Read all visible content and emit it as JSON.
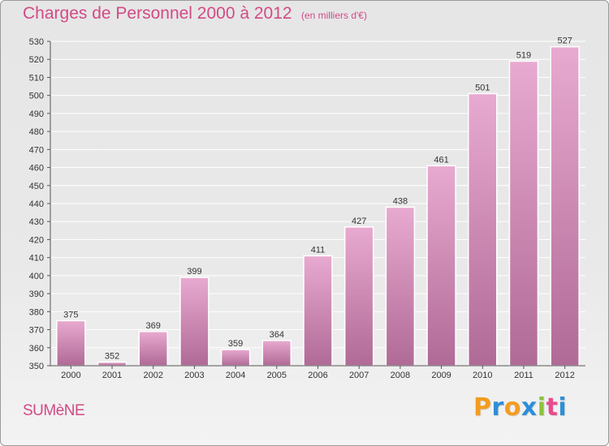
{
  "chart_data": {
    "type": "bar",
    "title": "Charges de Personnel 2000 à 2012",
    "subtitle": "(en milliers d'€)",
    "categories": [
      "2000",
      "2001",
      "2002",
      "2003",
      "2004",
      "2005",
      "2006",
      "2007",
      "2008",
      "2009",
      "2010",
      "2011",
      "2012"
    ],
    "values": [
      375,
      352,
      369,
      399,
      359,
      364,
      411,
      427,
      438,
      461,
      501,
      519,
      527
    ],
    "xlabel": "",
    "ylabel": "",
    "ylim": [
      350,
      530
    ],
    "y_ticks": [
      350,
      360,
      370,
      380,
      390,
      400,
      410,
      420,
      430,
      440,
      450,
      460,
      470,
      480,
      490,
      500,
      510,
      520,
      530
    ],
    "grid": true,
    "data_labels": true,
    "bar_color_top": "#e8aad0",
    "bar_color_bottom": "#b06a96"
  },
  "footer": {
    "commune": "SUMèNE",
    "brand_letters": [
      "P",
      "r",
      "o",
      "x",
      "i",
      "t",
      "i"
    ],
    "brand_colors": [
      "#f39c1f",
      "#2d8fd6",
      "#f39c1f",
      "#2d8fd6",
      "#8bc33a",
      "#e94b8f",
      "#2d8fd6"
    ]
  },
  "colors": {
    "title": "#d24a86",
    "grid": "#ffffff",
    "axis": "#555555"
  }
}
